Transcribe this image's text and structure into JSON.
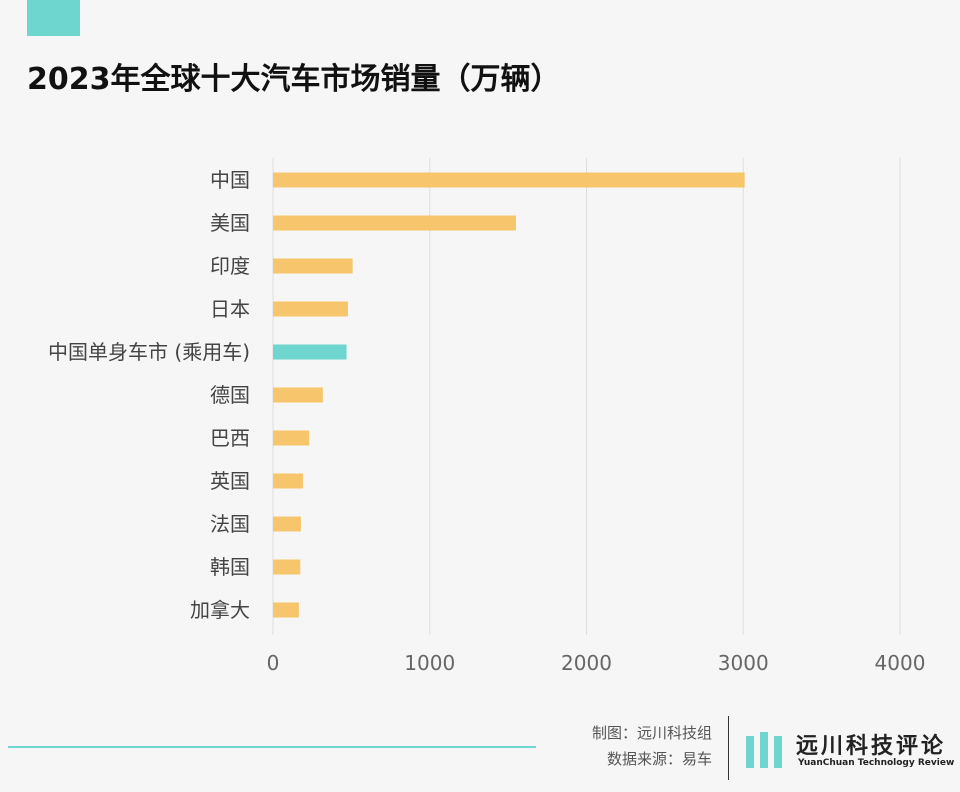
{
  "title": "2023年全球十大汽车市场销量（万辆）",
  "colors": {
    "accent": "#6fd6cf",
    "bar": "#f7c56b",
    "highlight": "#6fd6cf",
    "grid": "#dddddd"
  },
  "chart_data": {
    "type": "bar",
    "orientation": "horizontal",
    "categories": [
      "中国",
      "美国",
      "印度",
      "日本",
      "中国单身车市 (乘用车)",
      "德国",
      "巴西",
      "英国",
      "法国",
      "韩国",
      "加拿大"
    ],
    "values": [
      3009,
      1550,
      508,
      478,
      469,
      318,
      231,
      191,
      178,
      174,
      165
    ],
    "highlight_index": 4,
    "xlim": [
      0,
      4000
    ],
    "xticks": [
      "0",
      "1000",
      "2000",
      "3000",
      "4000"
    ],
    "grid": true
  },
  "footer": {
    "credit_line1": "制图：远川科技组",
    "credit_line2": "数据来源：易车",
    "logo_cn": "远川科技评论",
    "logo_en": "YuanChuan Technology Review"
  }
}
